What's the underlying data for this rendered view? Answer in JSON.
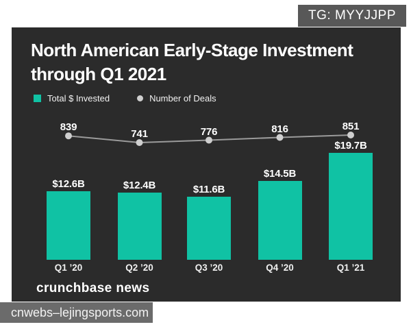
{
  "page": {
    "tg_badge": "TG: MYYJJPP",
    "watermark": "cnwebs–lejingsports.com"
  },
  "header": {
    "title_line1": "North American Early-Stage Investment",
    "title_line2": "through Q1 2021"
  },
  "legend": {
    "invested_label": "Total $ Invested",
    "deals_label": "Number of Deals"
  },
  "footer": {
    "source": "crunchbase news"
  },
  "colors": {
    "panel_bg": "#2b2b2b",
    "bar": "#10c2a4",
    "line": "#9b9b9b",
    "marker": "#cfcfcf",
    "tg_badge_bg": "#585858",
    "watermark_bg": "#6b6b6b"
  },
  "chart_data": {
    "type": "bar",
    "title": "North American Early-Stage Investment through Q1 2021",
    "categories": [
      "Q1 ’20",
      "Q2 ’20",
      "Q3 ’20",
      "Q4 ’20",
      "Q1 ’21"
    ],
    "series": [
      {
        "name": "Total $ Invested",
        "type": "bar",
        "unit": "USD billions",
        "values": [
          12.6,
          12.4,
          11.6,
          14.5,
          19.7
        ],
        "labels": [
          "$12.6B",
          "$12.4B",
          "$11.6B",
          "$14.5B",
          "$19.7B"
        ]
      },
      {
        "name": "Number of Deals",
        "type": "line",
        "values": [
          839,
          741,
          776,
          816,
          851
        ]
      }
    ],
    "legend_position": "top-left",
    "grid": false,
    "source": "crunchbase news"
  }
}
